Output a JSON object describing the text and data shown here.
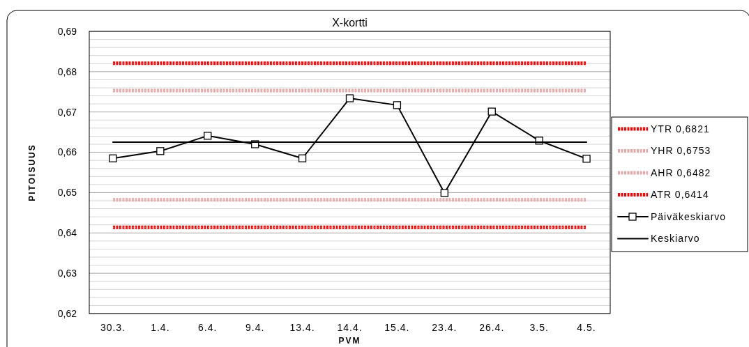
{
  "chart_data": {
    "type": "line",
    "title": "X-kortti",
    "xlabel": "PVM",
    "ylabel": "PITOISUUS",
    "categories": [
      "30.3.",
      "1.4.",
      "6.4.",
      "9.4.",
      "13.4.",
      "14.4.",
      "15.4.",
      "23.4.",
      "26.4.",
      "3.5.",
      "4.5."
    ],
    "series": [
      {
        "name": "YTR 0,6821",
        "color": "#ff0000",
        "line_style": "dotted",
        "marker": "none",
        "values": [
          0.6821,
          0.6821,
          0.6821,
          0.6821,
          0.6821,
          0.6821,
          0.6821,
          0.6821,
          0.6821,
          0.6821,
          0.6821
        ]
      },
      {
        "name": "YHR 0,6753",
        "color": "#e6a8a8",
        "line_style": "dotted",
        "marker": "none",
        "values": [
          0.6753,
          0.6753,
          0.6753,
          0.6753,
          0.6753,
          0.6753,
          0.6753,
          0.6753,
          0.6753,
          0.6753,
          0.6753
        ]
      },
      {
        "name": "AHR 0,6482",
        "color": "#e6a8a8",
        "line_style": "dotted",
        "marker": "none",
        "values": [
          0.6482,
          0.6482,
          0.6482,
          0.6482,
          0.6482,
          0.6482,
          0.6482,
          0.6482,
          0.6482,
          0.6482,
          0.6482
        ]
      },
      {
        "name": "ATR 0,6414",
        "color": "#ff0000",
        "line_style": "dotted",
        "marker": "none",
        "values": [
          0.6414,
          0.6414,
          0.6414,
          0.6414,
          0.6414,
          0.6414,
          0.6414,
          0.6414,
          0.6414,
          0.6414,
          0.6414
        ]
      },
      {
        "name": "Päiväkeskiarvo",
        "color": "#000000",
        "line_style": "solid",
        "marker": "square",
        "values": [
          0.6585,
          0.6603,
          0.6641,
          0.662,
          0.6585,
          0.6734,
          0.6717,
          0.6499,
          0.6701,
          0.6629,
          0.6584
        ]
      },
      {
        "name": "Keskiarvo",
        "color": "#000000",
        "line_style": "solid",
        "marker": "none",
        "values": [
          0.6625,
          0.6625,
          0.6625,
          0.6625,
          0.6625,
          0.6625,
          0.6625,
          0.6625,
          0.6625,
          0.6625,
          0.6625
        ]
      }
    ],
    "ylim": [
      0.62,
      0.69
    ],
    "yticks": [
      {
        "value": 0.62,
        "label": "0,62"
      },
      {
        "value": 0.622,
        "label": null
      },
      {
        "value": 0.624,
        "label": null
      },
      {
        "value": 0.626,
        "label": null
      },
      {
        "value": 0.628,
        "label": null
      },
      {
        "value": 0.63,
        "label": "0,63"
      },
      {
        "value": 0.632,
        "label": null
      },
      {
        "value": 0.634,
        "label": null
      },
      {
        "value": 0.636,
        "label": null
      },
      {
        "value": 0.638,
        "label": null
      },
      {
        "value": 0.64,
        "label": "0,64"
      },
      {
        "value": 0.642,
        "label": null
      },
      {
        "value": 0.644,
        "label": null
      },
      {
        "value": 0.646,
        "label": null
      },
      {
        "value": 0.648,
        "label": null
      },
      {
        "value": 0.65,
        "label": "0,65"
      },
      {
        "value": 0.652,
        "label": null
      },
      {
        "value": 0.654,
        "label": null
      },
      {
        "value": 0.656,
        "label": null
      },
      {
        "value": 0.658,
        "label": null
      },
      {
        "value": 0.66,
        "label": "0,66"
      },
      {
        "value": 0.662,
        "label": null
      },
      {
        "value": 0.664,
        "label": null
      },
      {
        "value": 0.666,
        "label": null
      },
      {
        "value": 0.668,
        "label": null
      },
      {
        "value": 0.67,
        "label": "0,67"
      },
      {
        "value": 0.672,
        "label": null
      },
      {
        "value": 0.674,
        "label": null
      },
      {
        "value": 0.676,
        "label": null
      },
      {
        "value": 0.678,
        "label": null
      },
      {
        "value": 0.68,
        "label": "0,68"
      },
      {
        "value": 0.682,
        "label": null
      },
      {
        "value": 0.684,
        "label": null
      },
      {
        "value": 0.686,
        "label": null
      },
      {
        "value": 0.688,
        "label": null
      },
      {
        "value": 0.69,
        "label": "0,69"
      }
    ],
    "grid": "y",
    "legend": "right"
  }
}
